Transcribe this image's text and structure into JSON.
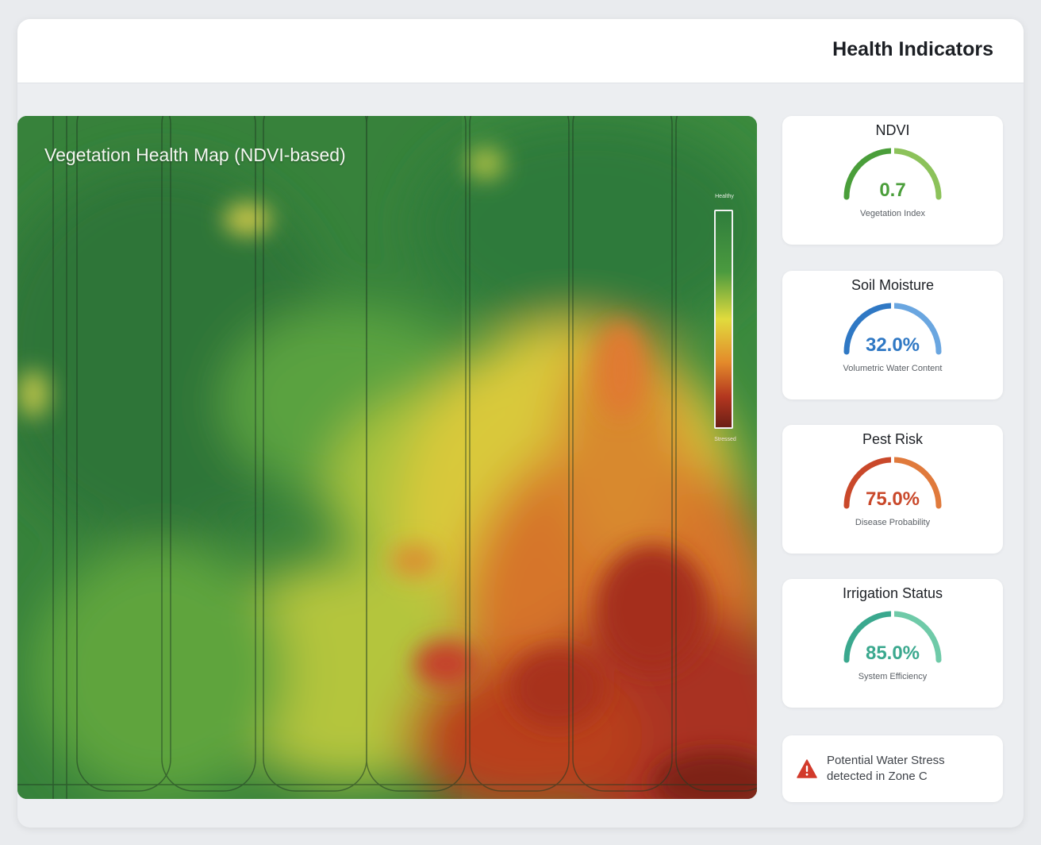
{
  "header": {
    "title": "Health Indicators"
  },
  "map": {
    "title": "Vegetation Health Map (NDVI-based)",
    "legend_top_label": "Healthy",
    "legend_bottom_label": "Stressed",
    "colors": {
      "healthy": "#2f7d3c",
      "moderate": "#e1db3d",
      "stressed": "#b3361f"
    }
  },
  "indicators": [
    {
      "title": "NDVI",
      "value": "0.7",
      "fraction": 0.7,
      "subtitle": "Vegetation Index",
      "color": "#4a9e3a",
      "color_light": "#8cc25a"
    },
    {
      "title": "Soil Moisture",
      "value": "32.0%",
      "fraction": 0.32,
      "subtitle": "Volumetric Water Content",
      "color": "#2f78c4",
      "color_light": "#6aa6e0"
    },
    {
      "title": "Pest Risk",
      "value": "75.0%",
      "fraction": 0.75,
      "subtitle": "Disease Probability",
      "color": "#c9482a",
      "color_light": "#e07a3c"
    },
    {
      "title": "Irrigation Status",
      "value": "85.0%",
      "fraction": 0.85,
      "subtitle": "System Efficiency",
      "color": "#3aa88e",
      "color_light": "#6fcaa8"
    }
  ],
  "alert": {
    "icon": "warning-icon",
    "text_line1": "Potential Water Stress",
    "text_line2": "detected in Zone C",
    "color": "#d23a2b"
  }
}
